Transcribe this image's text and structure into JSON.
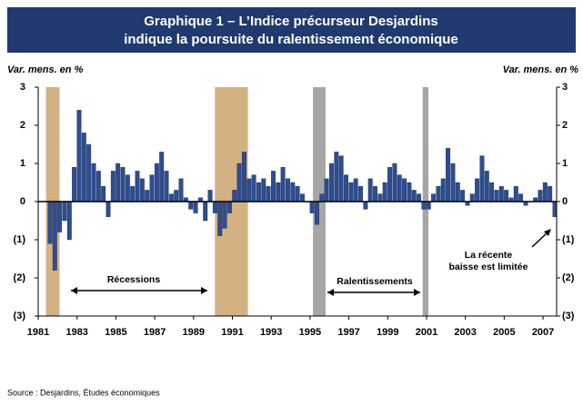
{
  "chart_data": {
    "type": "bar",
    "title": [
      "Graphique 1 – L’Indice précurseur Desjardins",
      "indique la poursuite du ralentissement économique"
    ],
    "y_label_left": "Var. mens. en %",
    "y_label_right": "Var. mens. en %",
    "annotations": [
      "Récessions",
      "Ralentissements",
      "La récente",
      "baisse est limitée"
    ],
    "source": "Source : Desjardins, Études économiques",
    "color": "#2e4d8f",
    "x": [
      1981.5,
      1981.75,
      1982,
      1982.25,
      1982.5,
      1982.75,
      1983,
      1983.25,
      1983.5,
      1983.75,
      1984,
      1984.25,
      1984.5,
      1984.75,
      1985,
      1985.25,
      1985.5,
      1985.75,
      1986,
      1986.25,
      1986.5,
      1986.75,
      1987,
      1987.25,
      1987.5,
      1987.75,
      1988,
      1988.25,
      1988.5,
      1988.75,
      1989,
      1989.25,
      1989.5,
      1989.75,
      1990,
      1990.25,
      1990.5,
      1990.75,
      1991,
      1991.25,
      1991.5,
      1991.75,
      1992,
      1992.25,
      1992.5,
      1992.75,
      1993,
      1993.25,
      1993.5,
      1993.75,
      1994,
      1994.25,
      1994.5,
      1994.75,
      1995,
      1995.25,
      1995.5,
      1995.75,
      1996,
      1996.25,
      1996.5,
      1996.75,
      1997,
      1997.25,
      1997.5,
      1997.75,
      1998,
      1998.25,
      1998.5,
      1998.75,
      1999,
      1999.25,
      1999.5,
      1999.75,
      2000,
      2000.25,
      2000.5,
      2000.75,
      2001,
      2001.25,
      2001.5,
      2001.75,
      2002,
      2002.25,
      2002.5,
      2002.75,
      2003,
      2003.25,
      2003.5,
      2003.75,
      2004,
      2004.25,
      2004.5,
      2004.75,
      2005,
      2005.25,
      2005.5,
      2005.75,
      2006,
      2006.25,
      2006.5,
      2006.75,
      2007,
      2007.25,
      2007.5
    ],
    "values": [
      -1.1,
      -1.8,
      -0.8,
      -0.5,
      -1.0,
      0.9,
      2.4,
      1.8,
      1.5,
      1.0,
      0.8,
      0.4,
      -0.4,
      0.8,
      1.0,
      0.9,
      0.7,
      0.4,
      0.8,
      0.6,
      0.3,
      0.7,
      1.0,
      1.3,
      0.8,
      0.2,
      0.3,
      0.6,
      0.1,
      -0.2,
      -0.3,
      0.1,
      -0.5,
      0.3,
      -0.3,
      -0.9,
      -0.7,
      -0.3,
      0.3,
      1.0,
      1.3,
      0.6,
      0.7,
      0.5,
      0.6,
      0.4,
      0.8,
      0.5,
      0.9,
      0.6,
      0.5,
      0.4,
      0.2,
      0.0,
      -0.3,
      -0.6,
      0.2,
      0.6,
      1.0,
      1.3,
      1.2,
      0.7,
      0.5,
      0.6,
      0.4,
      -0.2,
      0.6,
      0.4,
      0.2,
      0.5,
      0.9,
      1.0,
      0.7,
      0.6,
      0.5,
      0.3,
      0.2,
      -0.2,
      -0.2,
      0.2,
      0.4,
      0.6,
      1.4,
      1.0,
      0.5,
      0.3,
      -0.1,
      0.2,
      0.6,
      1.2,
      0.8,
      0.5,
      0.3,
      0.4,
      0.3,
      0.1,
      0.4,
      0.2,
      -0.1,
      0.0,
      0.1,
      0.3,
      0.5,
      0.4,
      -0.4
    ],
    "shaded_periods": [
      {
        "start": 1981.4,
        "end": 1982.1,
        "color": "#d4b183"
      },
      {
        "start": 1990.1,
        "end": 1991.8,
        "color": "#d4b183"
      },
      {
        "start": 1995.15,
        "end": 1995.8,
        "color": "#a6a6a6"
      },
      {
        "start": 2000.8,
        "end": 2001.1,
        "color": "#a6a6a6"
      }
    ],
    "xlim": [
      1981,
      2007.7
    ],
    "xticks": [
      1981,
      1983,
      1985,
      1987,
      1989,
      1991,
      1993,
      1995,
      1997,
      1999,
      2001,
      2003,
      2005,
      2007
    ],
    "ylim": [
      -3,
      3
    ],
    "yticks": [
      {
        "value": -3,
        "label": "(3)"
      },
      {
        "value": -2,
        "label": "(2)"
      },
      {
        "value": -1,
        "label": "(1)"
      },
      0,
      1,
      2,
      3
    ]
  }
}
